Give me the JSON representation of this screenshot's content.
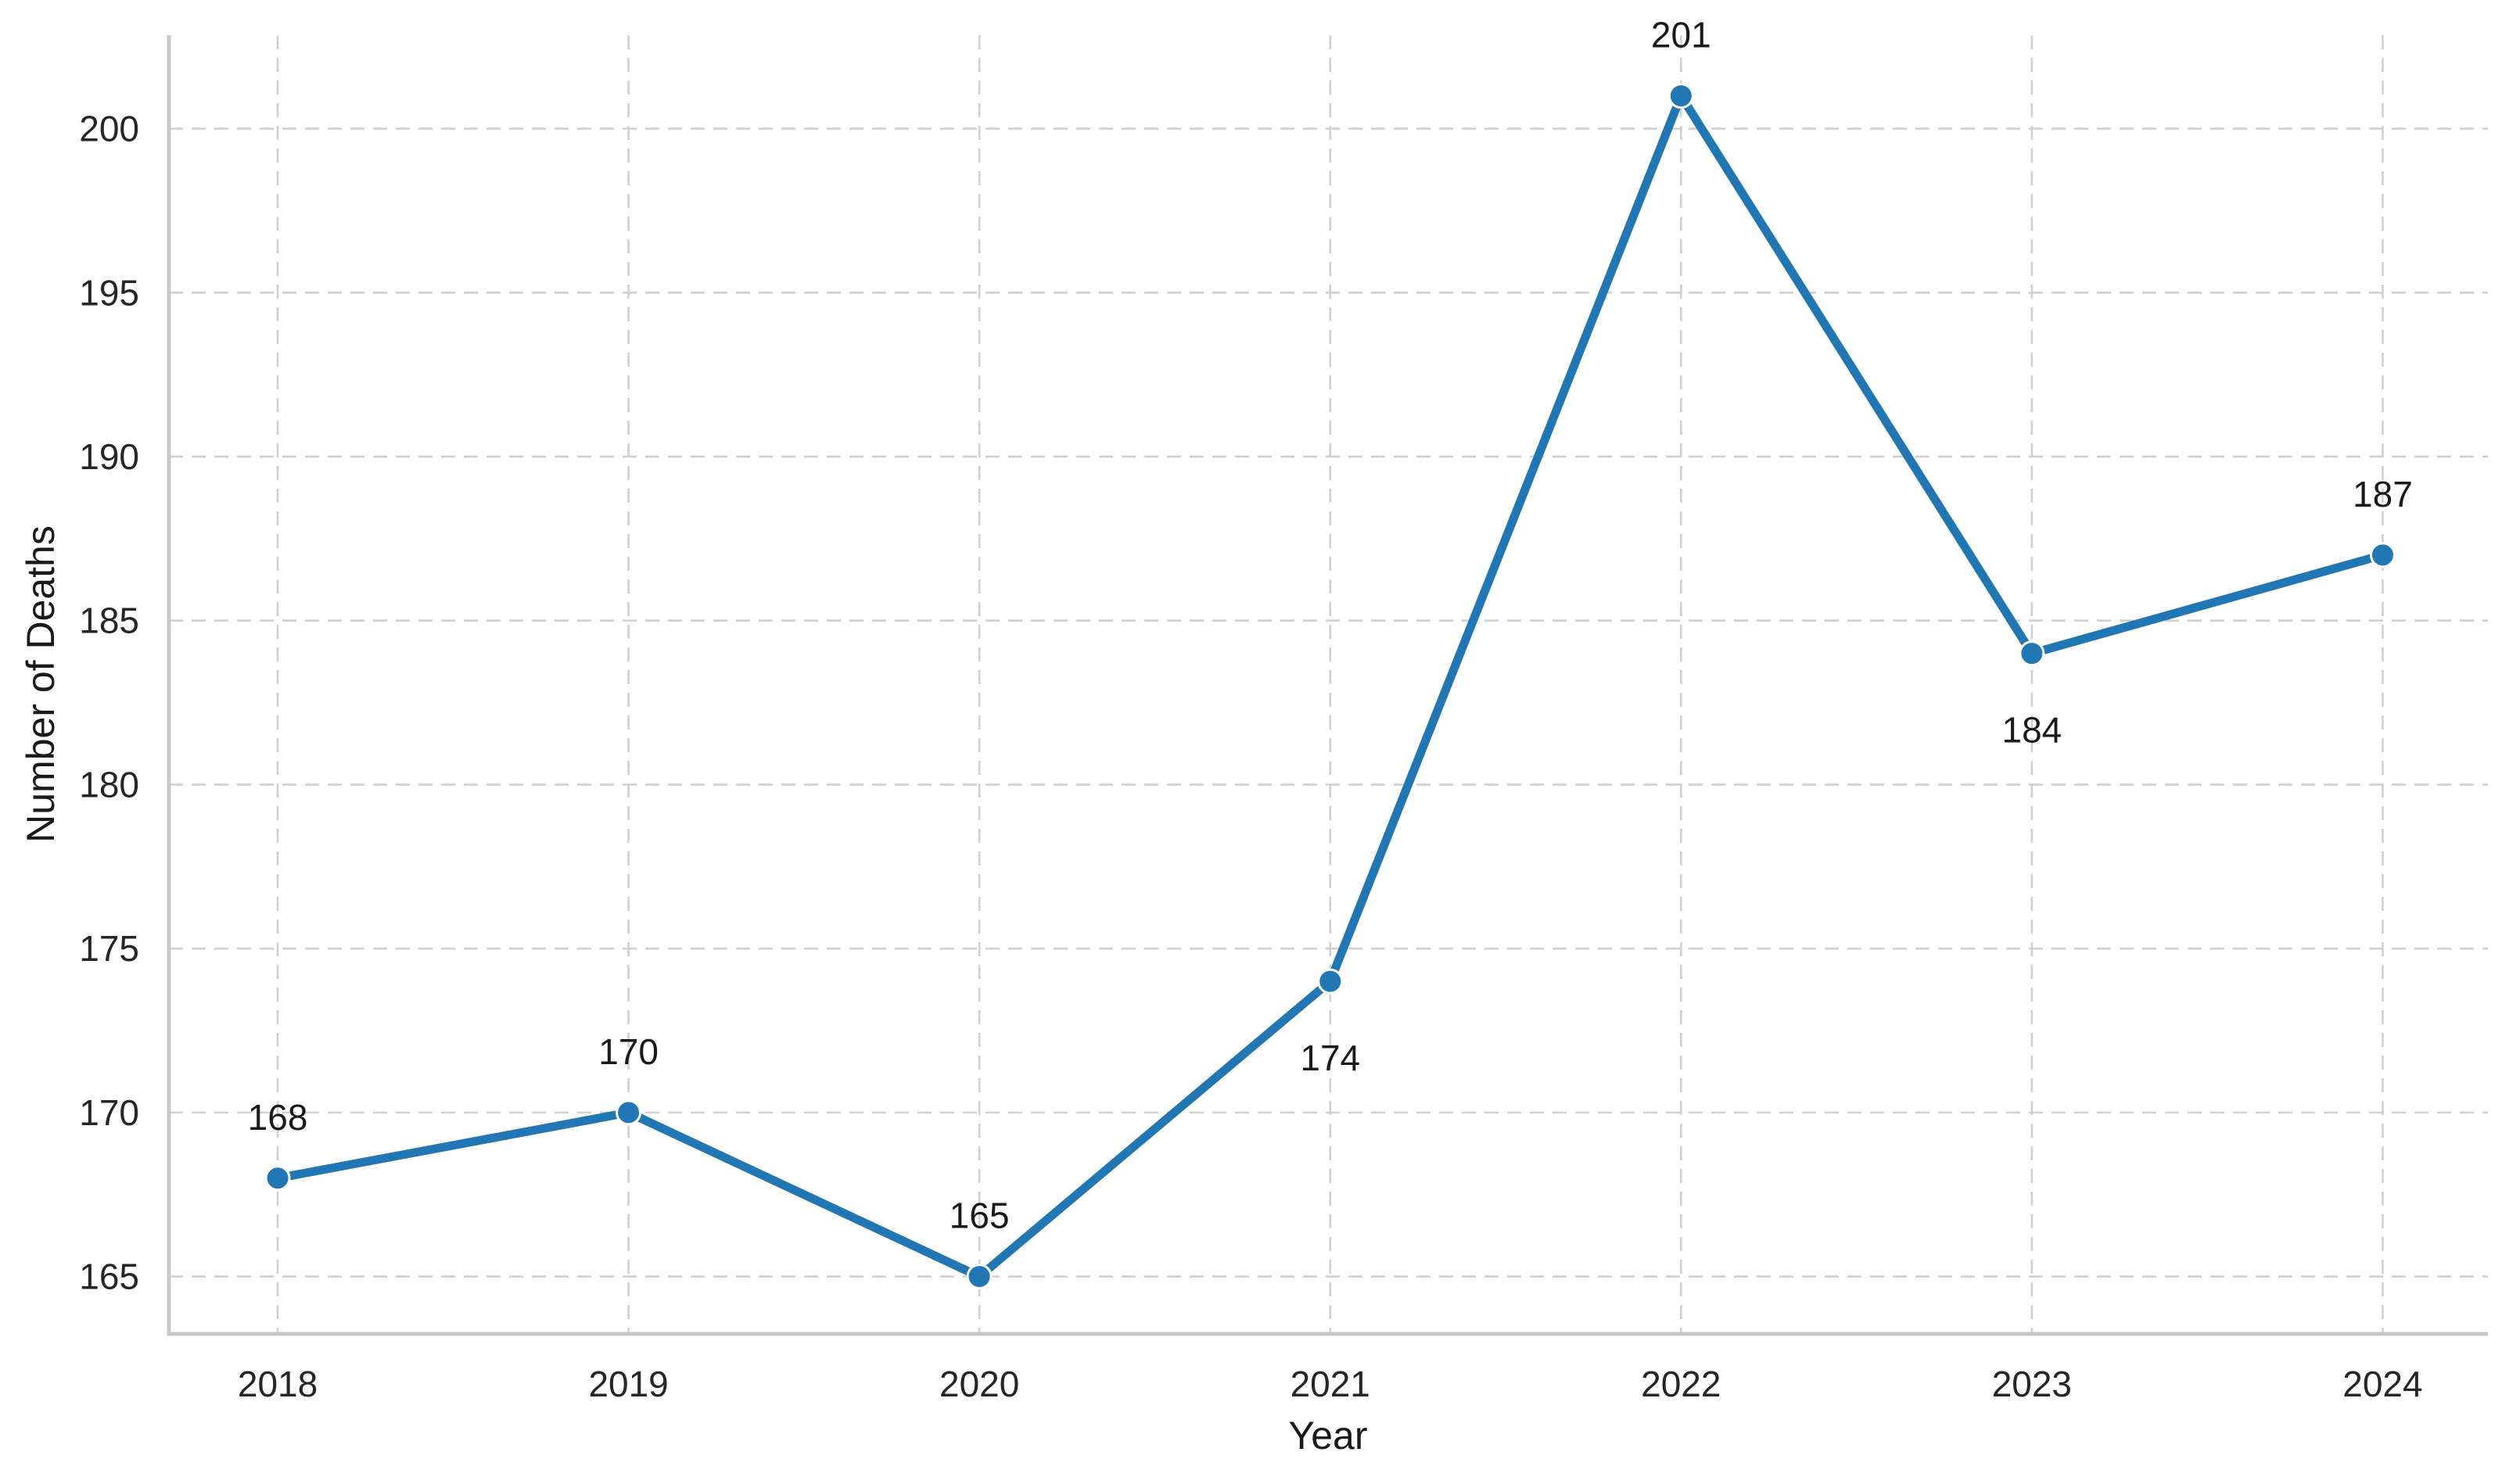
{
  "chart_data": {
    "type": "line",
    "title": "",
    "xlabel": "Year",
    "ylabel": "Number of Deaths",
    "x": [
      2018,
      2019,
      2020,
      2021,
      2022,
      2023,
      2024
    ],
    "series": [
      {
        "name": "Number of Deaths",
        "values": [
          168,
          170,
          165,
          174,
          201,
          184,
          187
        ]
      }
    ],
    "point_labels": [
      "168",
      "170",
      "165",
      "174",
      "201",
      "184",
      "187"
    ],
    "point_label_positions": [
      "above",
      "above",
      "above",
      "below",
      "above",
      "below",
      "above"
    ],
    "xticks": [
      "2018",
      "2019",
      "2020",
      "2021",
      "2022",
      "2023",
      "2024"
    ],
    "yticks": [
      165,
      170,
      175,
      180,
      185,
      190,
      195,
      200
    ],
    "xlim": [
      2017.69,
      2024.3
    ],
    "ylim": [
      163.25,
      202.85
    ],
    "grid": {
      "show": true,
      "style": "dashed",
      "axes": "both"
    },
    "legend_position": "none",
    "spines": [
      "left",
      "bottom"
    ],
    "colors": {
      "line": "#2077b4",
      "marker_fill": "#2077b4",
      "marker_edge": "#ffffff",
      "grid": "#d0d0d0",
      "spine": "#c8c8c8",
      "tick_text": "#262626",
      "label_text": "#1a1a1a",
      "background": "#ffffff"
    }
  }
}
